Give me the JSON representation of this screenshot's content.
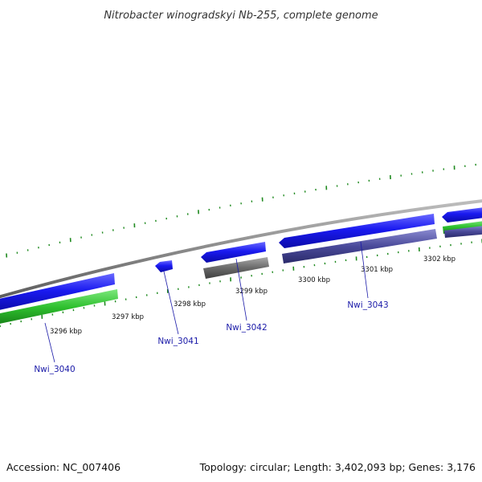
{
  "title": "Nitrobacter winogradskyi Nb-255, complete genome",
  "footer": {
    "accession": "Accession: NC_007406",
    "summary": "Topology: circular; Length: 3,402,093 bp; Genes: 3,176"
  },
  "colors": {
    "backbone": "#8a8a8a",
    "forward_cds": "#1a1af0",
    "forward_rna": "#2ec02e",
    "reverse_cds": "#4a4a9a",
    "reverse_other": "#6a6a6a",
    "ticks": "#1f8a1f",
    "gene_label": "#1a1aa8"
  },
  "ticks": {
    "major_labels": [
      "3296 kbp",
      "3297 kbp",
      "3298 kbp",
      "3299 kbp",
      "3300 kbp",
      "3301 kbp",
      "3302 kbp"
    ]
  },
  "genes": [
    {
      "label": "Nwi_3040"
    },
    {
      "label": "Nwi_3041"
    },
    {
      "label": "Nwi_3042"
    },
    {
      "label": "Nwi_3043"
    }
  ]
}
